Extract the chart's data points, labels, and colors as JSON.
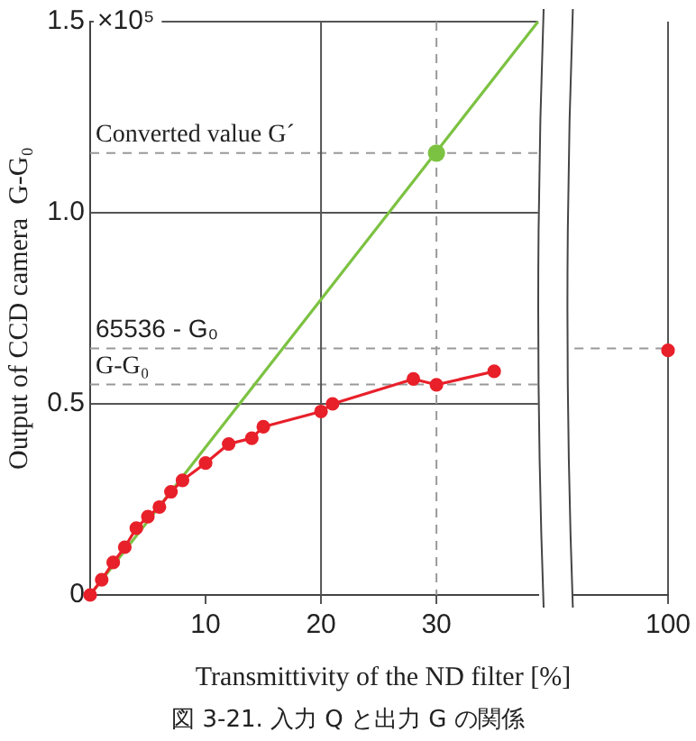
{
  "chart_data": [
    {
      "type": "line",
      "title": "図 3-21. 入力 Q と出力 G の関係",
      "xlabel": "Transmittivity of the ND filter [%]",
      "ylabel": "Output of CCD camera  G-G₀",
      "x": [
        0,
        1,
        2,
        3,
        4,
        5,
        6,
        7,
        8,
        10,
        12,
        14,
        15,
        20,
        21,
        28,
        30,
        35
      ],
      "series": [
        {
          "type": "line",
          "color": "#e8202a",
          "values": [
            0,
            0.04,
            0.085,
            0.125,
            0.175,
            0.205,
            0.23,
            0.27,
            0.3,
            0.345,
            0.395,
            0.41,
            0.44,
            0.48,
            0.5,
            0.565,
            0.55,
            0.585
          ]
        },
        {
          "type": "line",
          "color": "#7cc242",
          "x": [
            0,
            38.8
          ],
          "values": [
            0,
            1.5
          ],
          "marker": "none"
        },
        {
          "type": "scatter",
          "color": "#7cc242",
          "x": [
            30
          ],
          "values": [
            1.156
          ]
        }
      ],
      "xlim": [
        0,
        38.8
      ],
      "xticks": [
        10,
        20,
        30
      ],
      "ylim": [
        0,
        1.5
      ],
      "yticks": [
        0,
        0.5,
        {
          "value": 1,
          "label": "1.0"
        },
        1.5
      ],
      "ref_lines": [
        {
          "axis": "y",
          "value": 1.156,
          "label": "Converted value G´",
          "color": "#999999",
          "line_style": "dashed"
        },
        {
          "axis": "y",
          "value": 0.645,
          "label": "65536 - G₀",
          "color": "#999999",
          "line_style": "dashed"
        },
        {
          "axis": "y",
          "value": 0.551,
          "label": "G-G₀",
          "color": "#999999",
          "line_style": "dashed"
        },
        {
          "axis": "x",
          "value": 30,
          "label": null,
          "color": "#999999",
          "line_style": "dashed"
        },
        {
          "axis": "x",
          "value": 20,
          "label": null,
          "color": "#555555",
          "line_style": "solid"
        }
      ],
      "annotations": [
        "×10⁵"
      ],
      "grid": "y",
      "legend": false,
      "marker": "circle",
      "line_style": "solid"
    },
    {
      "type": "line",
      "categories": [
        "100"
      ],
      "series": [
        {
          "type": "line",
          "color": "#e8202a",
          "values": [
            0.64
          ]
        }
      ],
      "ylim": [
        0,
        1.5
      ],
      "yticks": [
        {
          "value": 0,
          "label": null
        },
        {
          "value": 0.5,
          "label": null
        },
        {
          "value": 1,
          "label": null
        },
        {
          "value": 1.5,
          "label": null
        }
      ],
      "ref_lines": [
        {
          "axis": "y",
          "value": 0.645,
          "label": null,
          "color": "#999999",
          "line_style": "dashed"
        }
      ],
      "tick_labels": "x",
      "grid": true,
      "legend": false,
      "marker": "circle",
      "line_style": "solid"
    }
  ]
}
